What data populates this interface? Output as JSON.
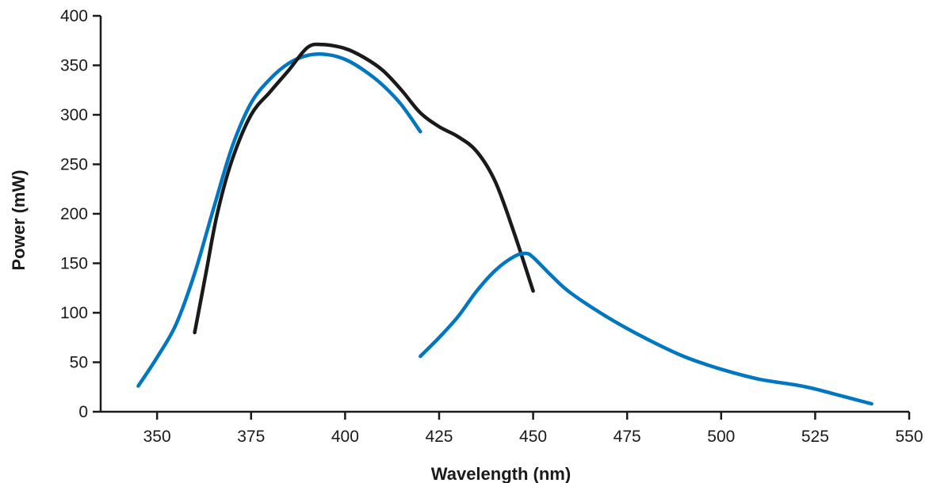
{
  "chart_data": {
    "type": "line",
    "title": "",
    "xlabel": "Wavelength (nm)",
    "ylabel": "Power (mW)",
    "xlim": [
      335,
      550
    ],
    "ylim": [
      0,
      400
    ],
    "xticks": [
      350,
      375,
      400,
      425,
      450,
      475,
      500,
      525,
      550
    ],
    "yticks": [
      0,
      50,
      100,
      150,
      200,
      250,
      300,
      350,
      400
    ],
    "grid": false,
    "legend": "none",
    "series": [
      {
        "color": "#0077c0",
        "x": [
          345,
          350,
          355,
          360,
          365,
          370,
          375,
          380,
          385,
          390,
          395,
          400,
          405,
          410,
          415,
          420
        ],
        "y": [
          26,
          55,
          88,
          140,
          205,
          268,
          312,
          336,
          352,
          360,
          361,
          356,
          345,
          330,
          310,
          283
        ]
      },
      {
        "color": "#1a1a1a",
        "x": [
          360,
          363,
          366,
          370,
          375,
          380,
          385,
          390,
          394,
          400,
          405,
          410,
          415,
          420,
          425,
          430,
          435,
          440,
          445,
          450
        ],
        "y": [
          80,
          140,
          200,
          255,
          300,
          323,
          345,
          368,
          371,
          367,
          358,
          345,
          325,
          302,
          288,
          278,
          263,
          232,
          180,
          122
        ]
      },
      {
        "color": "#0077c0",
        "x": [
          420,
          425,
          430,
          435,
          440,
          445,
          448,
          450,
          455,
          460,
          470,
          480,
          490,
          500,
          510,
          520,
          525,
          530,
          540
        ],
        "y": [
          56,
          75,
          96,
          122,
          143,
          157,
          160,
          156,
          137,
          120,
          95,
          74,
          56,
          43,
          33,
          27,
          23,
          18,
          8
        ]
      }
    ]
  }
}
